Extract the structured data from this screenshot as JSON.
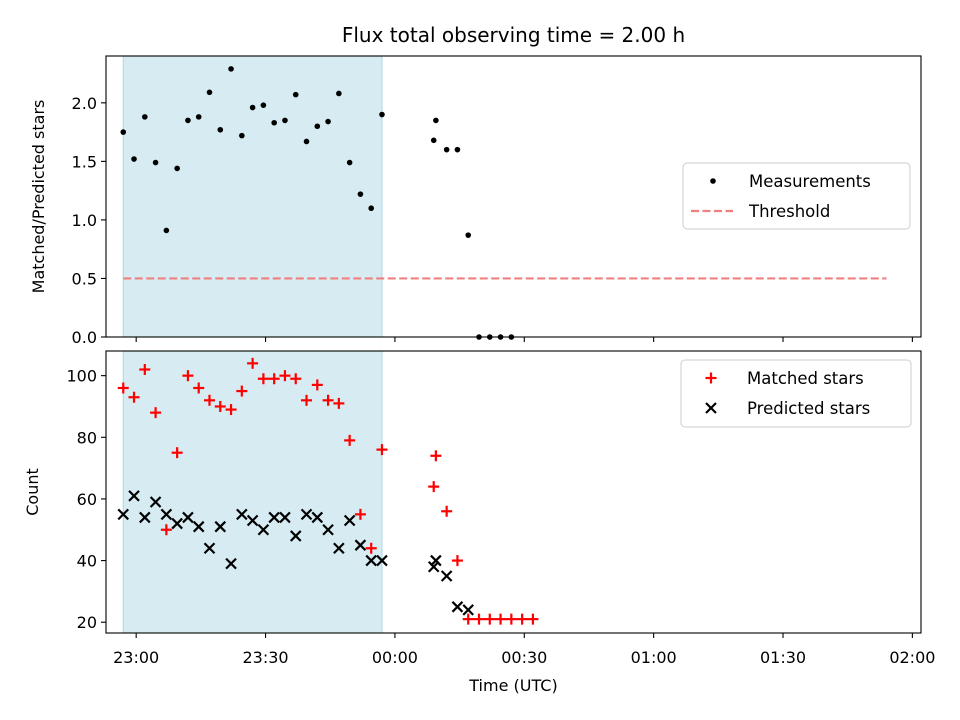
{
  "chart_data": {
    "title": "Flux total observing time = 2.00 h",
    "xlabel": "Time (UTC)",
    "x_ticks": [
      "23:00",
      "23:30",
      "00:00",
      "00:30",
      "01:00",
      "01:30",
      "02:00"
    ],
    "x_tick_minutes": [
      0,
      30,
      60,
      90,
      120,
      150,
      180
    ],
    "xlim_minutes": [
      -7,
      182
    ],
    "shaded_span_minutes": [
      -3,
      57
    ],
    "shade_color": "#add8e6",
    "panels": [
      {
        "type": "scatter",
        "ylabel": "Matched/Predicted stars",
        "ylim": [
          0,
          2.4
        ],
        "y_ticks": [
          "0.0",
          "0.5",
          "1.0",
          "1.5",
          "2.0"
        ],
        "y_tick_values": [
          0,
          0.5,
          1.0,
          1.5,
          2.0
        ],
        "legend": "center-right",
        "threshold": {
          "name": "Threshold",
          "value": 0.5,
          "x_range_minutes": [
            -3,
            174
          ],
          "color": "#f08080"
        },
        "series": [
          {
            "name": "Measurements",
            "color": "#000000",
            "marker": "dot",
            "x_minutes": [
              -3,
              -0.5,
              2,
              4.5,
              7,
              9.5,
              12,
              14.5,
              17,
              19.5,
              22,
              24.5,
              27,
              29.5,
              32,
              34.5,
              37,
              39.5,
              42,
              44.5,
              47,
              49.5,
              52,
              54.5,
              57,
              69,
              69.5,
              72,
              74.5,
              77,
              79.5,
              82,
              84.5,
              87
            ],
            "y": [
              1.75,
              1.52,
              1.88,
              1.49,
              0.91,
              1.44,
              1.85,
              1.88,
              2.09,
              1.77,
              2.29,
              1.72,
              1.96,
              1.98,
              1.83,
              1.85,
              2.07,
              1.67,
              1.8,
              1.84,
              2.08,
              1.49,
              1.22,
              1.1,
              1.9,
              1.68,
              1.85,
              1.6,
              1.6,
              0.87,
              0.0,
              0.0,
              0.0,
              0.0
            ]
          }
        ]
      },
      {
        "type": "scatter",
        "ylabel": "Count",
        "ylim": [
          16.5,
          108
        ],
        "y_ticks": [
          "20",
          "40",
          "60",
          "80",
          "100"
        ],
        "y_tick_values": [
          20,
          40,
          60,
          80,
          100
        ],
        "legend": "top-right",
        "series": [
          {
            "name": "Matched stars",
            "color": "#ff0000",
            "marker": "plus",
            "x_minutes": [
              -3,
              -0.5,
              2,
              4.5,
              7,
              9.5,
              12,
              14.5,
              17,
              19.5,
              22,
              24.5,
              27,
              29.5,
              32,
              34.5,
              37,
              39.5,
              42,
              44.5,
              47,
              49.5,
              52,
              54.5,
              57,
              69,
              69.5,
              72,
              74.5,
              77,
              79.5,
              82,
              84.5,
              87,
              89.5,
              92
            ],
            "y": [
              96,
              93,
              102,
              88,
              50,
              75,
              100,
              96,
              92,
              90,
              89,
              95,
              104,
              99,
              99,
              100,
              99,
              92,
              97,
              92,
              91,
              79,
              55,
              44,
              76,
              64,
              74,
              56,
              40,
              21,
              21,
              21,
              21,
              21,
              21,
              21
            ]
          },
          {
            "name": "Predicted stars",
            "color": "#000000",
            "marker": "x",
            "x_minutes": [
              -3,
              -0.5,
              2,
              4.5,
              7,
              9.5,
              12,
              14.5,
              17,
              19.5,
              22,
              24.5,
              27,
              29.5,
              32,
              34.5,
              37,
              39.5,
              42,
              44.5,
              47,
              49.5,
              52,
              54.5,
              57,
              69,
              69.5,
              72,
              74.5,
              77
            ],
            "y": [
              55,
              61,
              54,
              59,
              55,
              52,
              54,
              51,
              44,
              51,
              39,
              55,
              53,
              50,
              54,
              54,
              48,
              55,
              54,
              50,
              44,
              53,
              45,
              40,
              40,
              38,
              40,
              35,
              25,
              24
            ]
          }
        ]
      }
    ]
  }
}
